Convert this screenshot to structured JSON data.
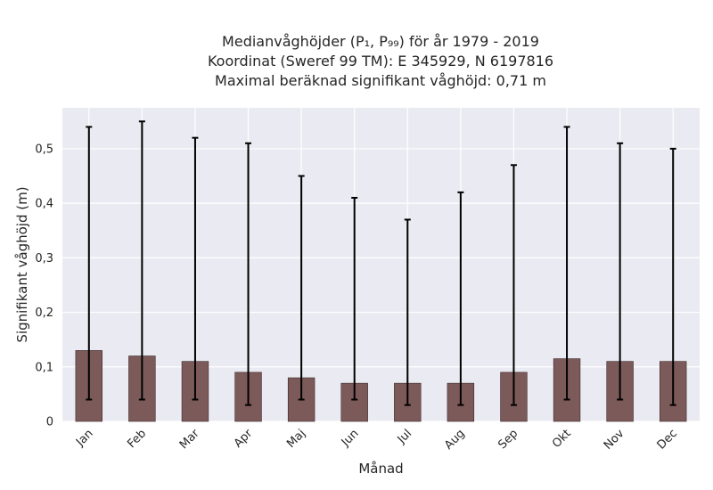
{
  "chart_data": {
    "type": "bar",
    "title_lines": [
      "Medianvåghöjder (P₁, P₉₉) för år 1979 - 2019",
      "Koordinat (Sweref 99 TM): E 345929, N 6197816",
      "Maximal beräknad signifikant våghöjd: 0,71 m"
    ],
    "xlabel": "Månad",
    "ylabel": "Signifikant våghöjd (m)",
    "categories": [
      "Jan",
      "Feb",
      "Mar",
      "Apr",
      "Maj",
      "Jun",
      "Jul",
      "Aug",
      "Sep",
      "Okt",
      "Nov",
      "Dec"
    ],
    "values": [
      0.13,
      0.12,
      0.11,
      0.09,
      0.08,
      0.07,
      0.07,
      0.07,
      0.09,
      0.115,
      0.11,
      0.11
    ],
    "p1": [
      0.04,
      0.04,
      0.04,
      0.03,
      0.04,
      0.04,
      0.03,
      0.03,
      0.03,
      0.04,
      0.04,
      0.03
    ],
    "p99": [
      0.54,
      0.55,
      0.52,
      0.51,
      0.45,
      0.41,
      0.37,
      0.42,
      0.47,
      0.54,
      0.51,
      0.5
    ],
    "ylim": [
      0,
      0.575
    ],
    "yticks": [
      0,
      0.1,
      0.2,
      0.3,
      0.4,
      0.5
    ],
    "ytick_labels": [
      "0",
      "0,1",
      "0,2",
      "0,3",
      "0,4",
      "0,5"
    ],
    "grid": true,
    "colors": {
      "bar": "#7d5a5a",
      "bar_edge": "#3a2a2a",
      "errorbar": "#000000",
      "plot_background": "#eaeaf2",
      "grid": "#ffffff"
    }
  }
}
